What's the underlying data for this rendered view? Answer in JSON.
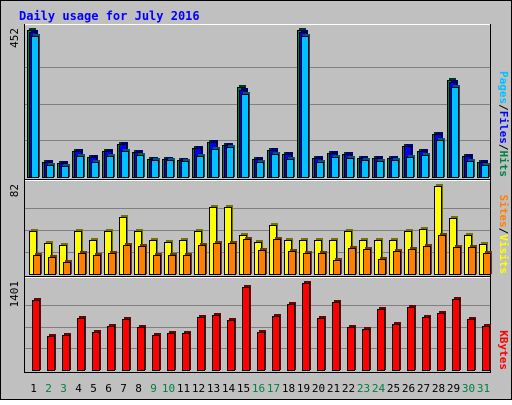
{
  "chart_data": {
    "type": "bar",
    "title": "Daily usage for July 2016",
    "categories": [
      "1",
      "2",
      "3",
      "4",
      "5",
      "6",
      "7",
      "8",
      "9",
      "10",
      "11",
      "12",
      "13",
      "14",
      "15",
      "16",
      "17",
      "18",
      "19",
      "20",
      "21",
      "22",
      "23",
      "24",
      "25",
      "26",
      "27",
      "28",
      "29",
      "30",
      "31"
    ],
    "weekend_days": [
      "2",
      "3",
      "9",
      "10",
      "16",
      "17",
      "23",
      "24",
      "30",
      "31"
    ],
    "panels": [
      {
        "id": "hits-files-pages",
        "ymax_label": "452",
        "ylim": [
          0,
          452
        ],
        "axis_labels": [
          "Pages",
          "/",
          "Files",
          "/",
          "Hits"
        ],
        "axis_label_colors": [
          "#00c0ff",
          "#000000",
          "#0000ff",
          "#000000",
          "#008040"
        ],
        "series": [
          {
            "name": "Hits",
            "color": "#008040",
            "values": [
              452,
              46,
              42,
              79,
              63,
              80,
              103,
              76,
              56,
              56,
              52,
              89,
              109,
              99,
              278,
              54,
              84,
              71,
              452,
              57,
              74,
              72,
              59,
              59,
              59,
              96,
              80,
              132,
              299,
              66,
              45
            ]
          },
          {
            "name": "Files",
            "color": "#0000ff",
            "values": [
              447,
              46,
              42,
              79,
              63,
              80,
              103,
              76,
              56,
              56,
              52,
              89,
              109,
              99,
              267,
              54,
              84,
              71,
              447,
              57,
              74,
              72,
              59,
              59,
              59,
              96,
              80,
              132,
              291,
              66,
              45
            ]
          },
          {
            "name": "Pages",
            "color": "#00c0ff",
            "values": [
              435,
              36,
              34,
              64,
              47,
              64,
              79,
              68,
              52,
              52,
              48,
              65,
              85,
              91,
              256,
              46,
              71,
              54,
              435,
              47,
              60,
              57,
              51,
              50,
              51,
              63,
              67,
              115,
              278,
              48,
              37
            ]
          }
        ]
      },
      {
        "id": "visits-sites",
        "ymax_label": "82",
        "ylim": [
          0,
          82
        ],
        "axis_labels": [
          "Sites",
          "/",
          "Visits"
        ],
        "axis_label_colors": [
          "#ff8000",
          "#000000",
          "#ffff00"
        ],
        "series": [
          {
            "name": "Visits",
            "color": "#ffff00",
            "values": [
              40,
              29,
              27,
              40,
              32,
              40,
              53,
              40,
              32,
              30,
              32,
              40,
              62,
              62,
              36,
              30,
              46,
              32,
              32,
              32,
              32,
              40,
              32,
              32,
              32,
              40,
              42,
              82,
              52,
              36,
              28
            ]
          },
          {
            "name": "Sites",
            "color": "#ff8000",
            "values": [
              18,
              16,
              11,
              20,
              18,
              20,
              27,
              26,
              18,
              18,
              18,
              27,
              29,
              29,
              33,
              22,
              33,
              21,
              20,
              20,
              13,
              24,
              23,
              14,
              21,
              23,
              26,
              36,
              25,
              25,
              20
            ]
          }
        ]
      },
      {
        "id": "kbytes",
        "ymax_label": "1401",
        "ylim": [
          0,
          1401
        ],
        "axis_labels": [
          "KBytes"
        ],
        "axis_label_colors": [
          "#ff0000"
        ],
        "series": [
          {
            "name": "KBytes",
            "color": "#ff0000",
            "values": [
              1120,
              545,
              565,
              833,
              607,
              713,
              827,
              686,
              560,
              600,
              600,
              857,
              885,
              806,
              1334,
              604,
              869,
              1068,
              1401,
              832,
              1088,
              698,
              654,
              987,
              741,
              1010,
              858,
              912,
              1141,
              827,
              703
            ]
          }
        ]
      }
    ]
  }
}
